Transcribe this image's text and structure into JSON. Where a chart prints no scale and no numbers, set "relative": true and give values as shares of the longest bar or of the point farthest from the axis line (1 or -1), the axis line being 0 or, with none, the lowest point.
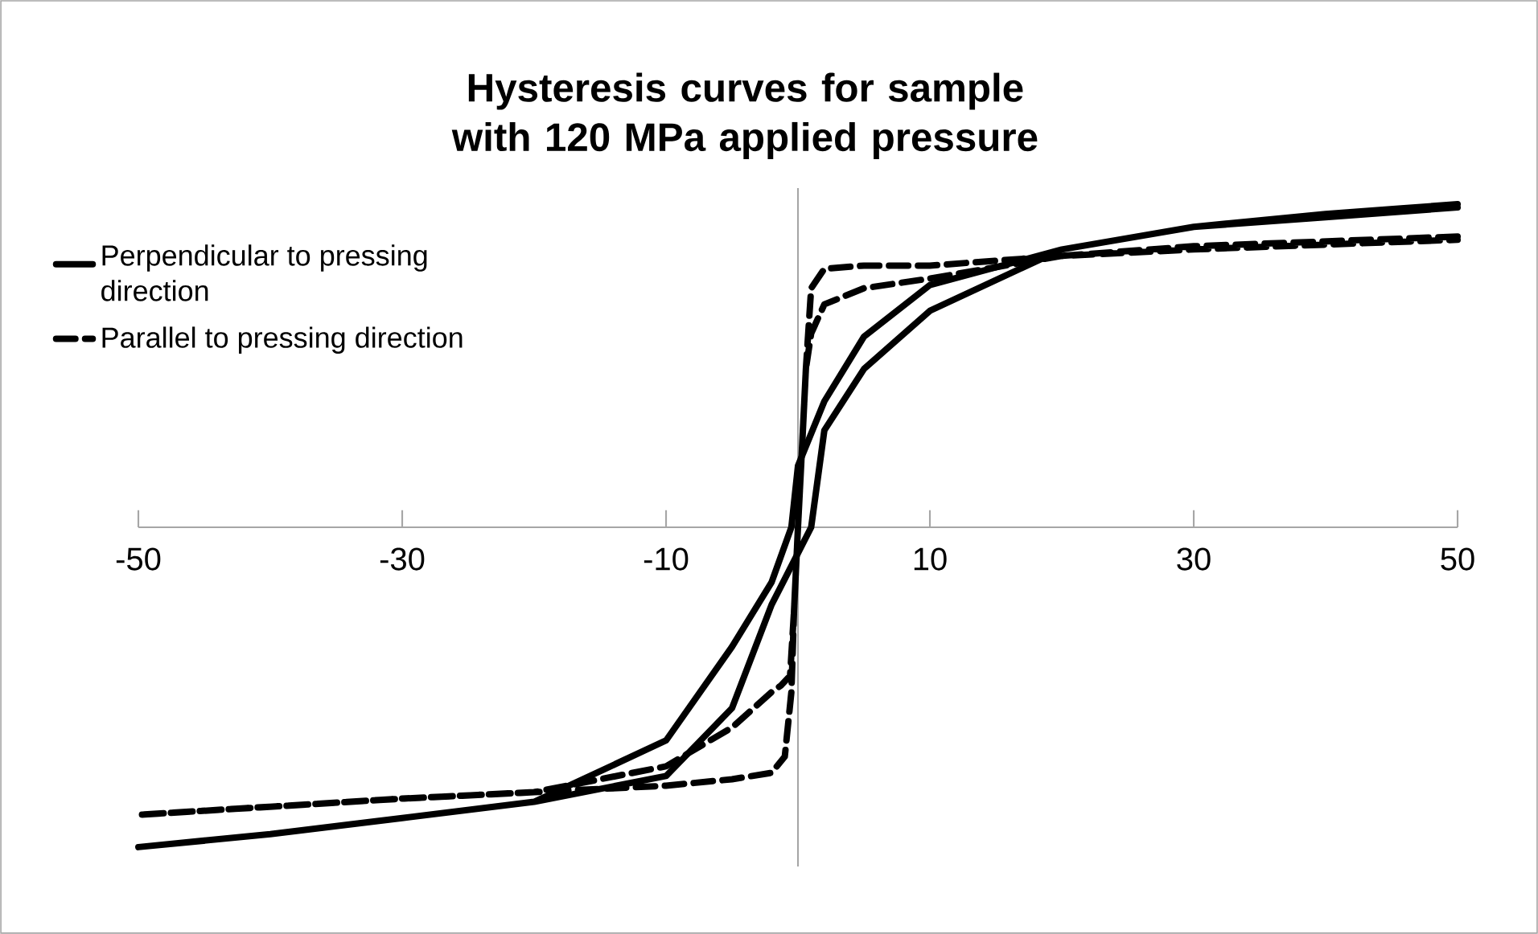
{
  "chart_data": {
    "type": "line",
    "title": "Hysteresis curves for sample with 120 MPa applied pressure",
    "relative": true,
    "xlim": [
      -50,
      50
    ],
    "xticks": [
      -50,
      -30,
      -10,
      10,
      30,
      50
    ],
    "grid": false,
    "legend": "top left",
    "marker": "none",
    "series": [
      {
        "name": "Perpendicular to pressing direction",
        "color": "#000000",
        "line_style": "solid",
        "x": [
          50,
          40,
          30,
          20,
          10,
          5,
          2,
          0,
          -0.5,
          -2,
          -5,
          -10,
          -20,
          -30,
          -40,
          -50,
          -40,
          -30,
          -20,
          -10,
          -5,
          -2,
          0,
          1,
          2,
          5,
          10,
          20,
          30,
          40,
          50
        ],
        "values": [
          1.0,
          0.97,
          0.93,
          0.86,
          0.75,
          0.59,
          0.39,
          0.19,
          0,
          -0.17,
          -0.37,
          -0.66,
          -0.85,
          -0.9,
          -0.95,
          -0.99,
          -0.95,
          -0.9,
          -0.85,
          -0.77,
          -0.56,
          -0.24,
          -0.08,
          0,
          0.3,
          0.49,
          0.67,
          0.86,
          0.93,
          0.96,
          0.99
        ]
      },
      {
        "name": "Parallel to pressing direction",
        "color": "#000000",
        "line_style": "dashed",
        "x": [
          50,
          30,
          20,
          10,
          5,
          2,
          1,
          0.6,
          0.3,
          0,
          -0.3,
          -0.6,
          -1.3,
          -2,
          -5,
          -10,
          -20,
          -30,
          -50,
          -30,
          -20,
          -10,
          -5,
          -2,
          -1,
          -0.5,
          -0.3,
          0,
          0.3,
          0.6,
          1,
          2,
          5,
          10,
          20,
          30,
          50
        ],
        "values": [
          0.9,
          0.87,
          0.84,
          0.81,
          0.81,
          0.8,
          0.74,
          0.49,
          0.24,
          0,
          -0.26,
          -0.46,
          -0.49,
          -0.51,
          -0.62,
          -0.74,
          -0.82,
          -0.84,
          -0.89,
          -0.84,
          -0.82,
          -0.8,
          -0.78,
          -0.76,
          -0.71,
          -0.51,
          -0.26,
          0,
          0.24,
          0.49,
          0.6,
          0.69,
          0.74,
          0.77,
          0.84,
          0.86,
          0.89
        ]
      }
    ]
  }
}
